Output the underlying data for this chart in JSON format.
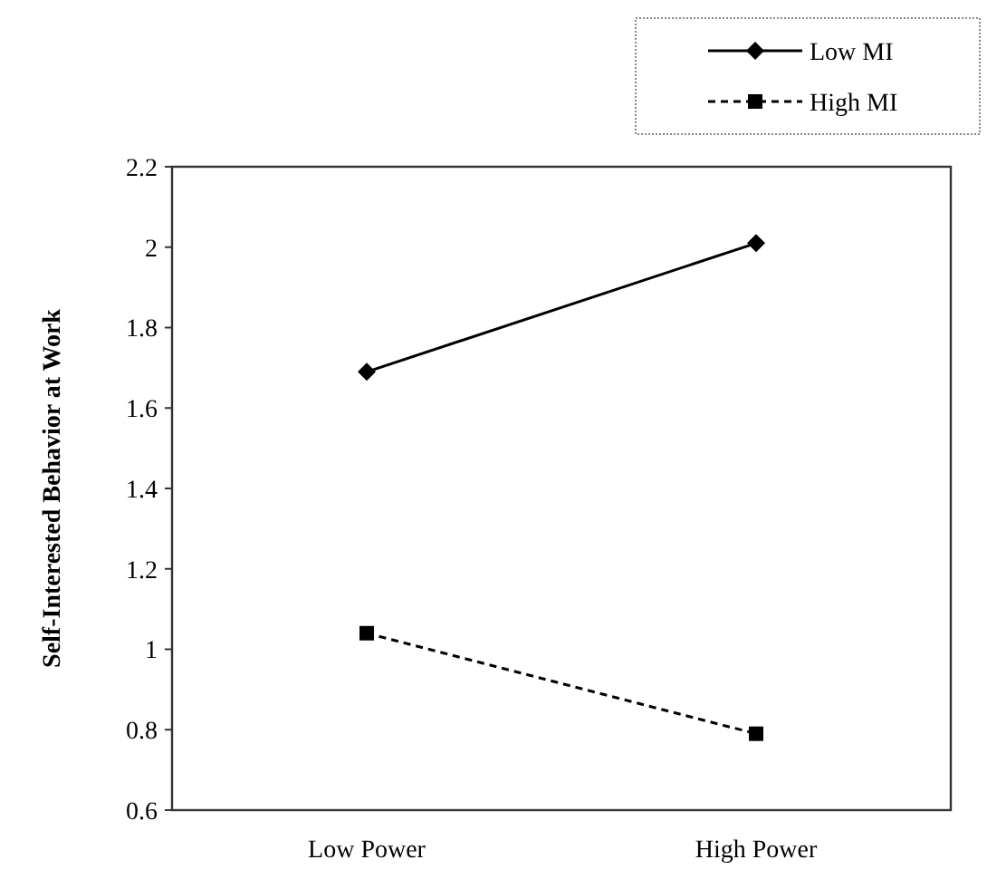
{
  "chart_data": {
    "type": "line",
    "ylabel": "Self-Interested Behavior at Work",
    "categories": [
      "Low Power",
      "High Power"
    ],
    "series": [
      {
        "name": "Low MI",
        "color": "#000000",
        "values": [
          1.69,
          2.01
        ],
        "marker": "diamond",
        "line_style": "solid"
      },
      {
        "name": "High MI",
        "color": "#000000",
        "values": [
          1.04,
          0.79
        ],
        "marker": "square",
        "line_style": "dashed"
      }
    ],
    "ylim": [
      0.6,
      2.2
    ],
    "yticks": [
      0.6,
      0.8,
      1,
      1.2,
      1.4,
      1.6,
      1.8,
      2,
      2.2
    ],
    "grid": false,
    "legend": "top right"
  }
}
